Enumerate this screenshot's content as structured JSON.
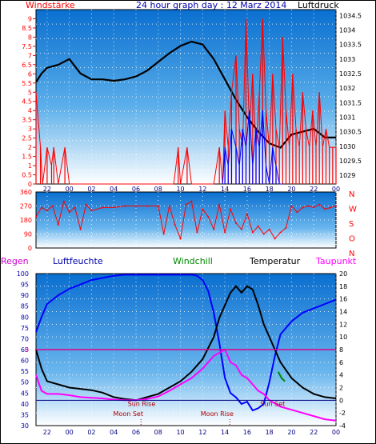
{
  "title": "24 hour graph day : 12 Marz 2014",
  "chart_data": [
    {
      "type": "line",
      "title": "24 hour graph day : 12 Marz 2014",
      "left_label": "Windstärke",
      "right_label": "Luftdruck",
      "x_ticks": [
        "22",
        "00",
        "02",
        "04",
        "06",
        "08",
        "10",
        "12",
        "14",
        "16",
        "18",
        "20",
        "22",
        "00"
      ],
      "y_left_ticks": [
        "0",
        "0.5",
        "1",
        "1.5",
        "2",
        "2.5",
        "3",
        "3.5",
        "4",
        "4.5",
        "5",
        "5.5",
        "6",
        "6.5",
        "7",
        "7.5",
        "8",
        "8.5",
        "9"
      ],
      "y_left_range": [
        0,
        9.5
      ],
      "y_right_ticks": [
        "1029",
        "1029.5",
        "1030",
        "1030.5",
        "1031",
        "1031.5",
        "1032",
        "1032.5",
        "1033",
        "1033.5",
        "1034",
        "1034.5"
      ],
      "y_right_range": [
        1028.7,
        1034.7
      ],
      "series": [
        {
          "role": "pressure",
          "color": "#000000",
          "x": [
            21,
            21.5,
            22,
            23,
            24,
            25,
            26,
            27,
            28,
            29,
            30,
            31,
            32,
            33,
            34,
            35,
            36,
            37,
            38,
            39,
            40,
            41,
            42,
            43,
            44,
            45,
            46,
            47,
            48
          ],
          "y": [
            1032.2,
            1032.5,
            1032.7,
            1032.8,
            1033.0,
            1032.5,
            1032.3,
            1032.3,
            1032.25,
            1032.3,
            1032.4,
            1032.6,
            1032.9,
            1033.2,
            1033.45,
            1033.6,
            1033.5,
            1033.0,
            1032.3,
            1031.6,
            1031.0,
            1030.5,
            1030.1,
            1029.95,
            1030.4,
            1030.5,
            1030.6,
            1030.3,
            1030.3
          ]
        },
        {
          "role": "gust",
          "color": "#ff0000",
          "x": [
            21.0,
            21.4,
            21.6,
            22.0,
            22.4,
            22.6,
            23.0,
            23.6,
            24.0,
            25.2,
            25.6,
            26.4,
            27.0,
            28.6,
            29.0,
            29.6,
            30.0,
            31.0,
            31.5,
            32.0,
            32.6,
            33.0,
            33.4,
            33.8,
            34.0,
            34.6,
            35.0,
            35.5,
            36.0,
            36.5,
            37.0,
            37.5,
            37.8,
            38.0,
            38.3,
            38.6,
            39.0,
            39.3,
            39.6,
            39.9,
            40.2,
            40.5,
            40.8,
            41.1,
            41.4,
            41.7,
            42.0,
            42.3,
            42.6,
            42.9,
            43.2,
            43.5,
            43.8,
            44.1,
            44.4,
            44.7,
            45.0,
            45.3,
            45.6,
            45.9,
            46.2,
            46.5,
            46.8,
            47.1,
            47.4,
            47.7,
            48.0
          ],
          "y": [
            5,
            2,
            0,
            2,
            1,
            2,
            0,
            2,
            0,
            0,
            0,
            0,
            0,
            0,
            0,
            0,
            0,
            0,
            0,
            0,
            0,
            0,
            0,
            2,
            0,
            2,
            0,
            0,
            0,
            0,
            0,
            2,
            0,
            4,
            2,
            5,
            7,
            3,
            2,
            9,
            3,
            6,
            2,
            5,
            9,
            4,
            2,
            6,
            3,
            2,
            8,
            4,
            2,
            6,
            3,
            2,
            5,
            3,
            2,
            4,
            2,
            5,
            2,
            3,
            2,
            2,
            2
          ]
        },
        {
          "role": "wind",
          "color": "#0000ff",
          "x": [
            37.8,
            38.0,
            38.3,
            38.6,
            39.0,
            39.3,
            39.6,
            39.9,
            40.2,
            40.5,
            40.8,
            41.1,
            41.4,
            41.7,
            42.0,
            42.3,
            42.6,
            42.9,
            43.2
          ],
          "y": [
            0,
            2,
            1,
            3,
            2,
            1,
            3,
            2,
            4,
            1,
            3,
            2,
            4,
            1,
            0,
            2,
            1,
            0,
            0
          ]
        }
      ]
    },
    {
      "type": "scatter",
      "title": "",
      "left_ticks": [
        "0",
        "90",
        "180",
        "270",
        "360"
      ],
      "y_range": [
        0,
        360
      ],
      "right_letters": [
        "N",
        "W",
        "S",
        "O",
        "N"
      ],
      "series": [
        {
          "role": "direction",
          "color": "#ff0000",
          "x": [
            21,
            21.5,
            22,
            22.5,
            23,
            23.5,
            24,
            24.5,
            25,
            25.5,
            26,
            27,
            28,
            29,
            30,
            31,
            32,
            32.5,
            33,
            33.5,
            34,
            34.5,
            35,
            35.5,
            36,
            36.5,
            37,
            37.5,
            38,
            38.5,
            39,
            39.5,
            40,
            40.5,
            41,
            41.5,
            42,
            42.5,
            43,
            43.5,
            44,
            44.5,
            45,
            45.5,
            46,
            46.5,
            47,
            47.5,
            48
          ],
          "y": [
            200,
            260,
            240,
            270,
            150,
            300,
            230,
            260,
            120,
            280,
            240,
            260,
            260,
            270,
            270,
            270,
            270,
            90,
            270,
            150,
            60,
            280,
            300,
            100,
            250,
            200,
            120,
            280,
            100,
            250,
            160,
            120,
            220,
            100,
            140,
            90,
            120,
            60,
            100,
            130,
            270,
            230,
            260,
            270,
            260,
            280,
            250,
            260,
            270
          ]
        }
      ]
    },
    {
      "type": "line",
      "title": "",
      "legend": [
        "Regen",
        "Luftfeuchte",
        "Windchill",
        "Temperatur",
        "Taupunkt"
      ],
      "y_left_ticks": [
        "30",
        "35",
        "40",
        "45",
        "50",
        "55",
        "60",
        "65",
        "70",
        "75",
        "80",
        "85",
        "90",
        "95",
        "100"
      ],
      "y_left_range": [
        30,
        100
      ],
      "y_right_ticks": [
        "-4",
        "-2",
        "0",
        "2",
        "4",
        "6",
        "8",
        "10",
        "12",
        "14",
        "16",
        "18",
        "20"
      ],
      "y_right_range": [
        -4,
        20
      ],
      "zero_marker": "0",
      "x_ticks": [
        "22",
        "00",
        "02",
        "04",
        "06",
        "08",
        "10",
        "12",
        "14",
        "16",
        "18",
        "20",
        "22",
        "00"
      ],
      "annotations": [
        {
          "text": "Sun Rise",
          "x": 30.5
        },
        {
          "text": "Sun Set",
          "x": 42.3
        },
        {
          "text": "Moon Set",
          "x": 29.3
        },
        {
          "text": "Moon Rise",
          "x": 37.3
        }
      ],
      "series": [
        {
          "name": "Luftfeuchte",
          "color": "#0000ff",
          "x": [
            21,
            21.5,
            22,
            23,
            24,
            25,
            26,
            27,
            28,
            29,
            30,
            31,
            32,
            33,
            34,
            35,
            35.5,
            36,
            36.5,
            37,
            37.5,
            38,
            38.5,
            39,
            39.5,
            40,
            40.5,
            41,
            41.5,
            42,
            42.5,
            43,
            44,
            45,
            46,
            47,
            48
          ],
          "y": [
            73,
            80,
            86,
            90,
            93,
            95,
            97,
            98,
            99,
            99.5,
            99.5,
            99.5,
            99.5,
            99.5,
            99.5,
            99.5,
            99,
            97,
            92,
            82,
            68,
            52,
            45,
            43,
            40,
            41,
            37,
            38,
            40,
            50,
            62,
            72,
            78,
            82,
            84,
            86,
            88
          ]
        },
        {
          "name": "Temperatur",
          "color": "#000000",
          "x": [
            21,
            21.5,
            22,
            23,
            24,
            25,
            26,
            27,
            28,
            29,
            30,
            31,
            32,
            33,
            34,
            35,
            36,
            37,
            37.5,
            38,
            38.5,
            39,
            39.5,
            40,
            40.5,
            41,
            41.5,
            42,
            42.5,
            43,
            44,
            45,
            46,
            47,
            48
          ],
          "y": [
            8,
            5,
            3,
            2.5,
            2,
            1.8,
            1.6,
            1.2,
            0.5,
            0.2,
            0,
            0.5,
            1,
            2,
            3,
            4.5,
            6.5,
            10,
            13,
            15,
            17,
            18,
            17,
            18,
            17.5,
            15,
            12,
            10,
            8,
            6,
            3.5,
            2,
            1,
            0.5,
            0.3
          ]
        },
        {
          "name": "Taupunkt",
          "color": "#ff00ff",
          "x": [
            21,
            21.5,
            22,
            23,
            24,
            25,
            26,
            27,
            28,
            29,
            30,
            31,
            32,
            33,
            34,
            35,
            36,
            37,
            38,
            38.5,
            39,
            39.5,
            40,
            40.5,
            41,
            41.5,
            42,
            42.5,
            43,
            44,
            45,
            46,
            47,
            48
          ],
          "y": [
            4,
            1.5,
            1,
            1,
            0.8,
            0.5,
            0.4,
            0.3,
            0.1,
            0,
            0,
            0.2,
            0.6,
            1.5,
            2.5,
            3.5,
            5,
            7,
            8,
            6,
            5.5,
            4,
            3.5,
            2.5,
            1.5,
            1,
            0,
            -0.5,
            -1,
            -1.5,
            -2,
            -2.5,
            -3,
            -3.2
          ]
        },
        {
          "name": "Windchill",
          "color": "#008800",
          "x": [
            42.8,
            43.1,
            43.4
          ],
          "y": [
            4.5,
            3.5,
            3
          ]
        }
      ]
    }
  ]
}
